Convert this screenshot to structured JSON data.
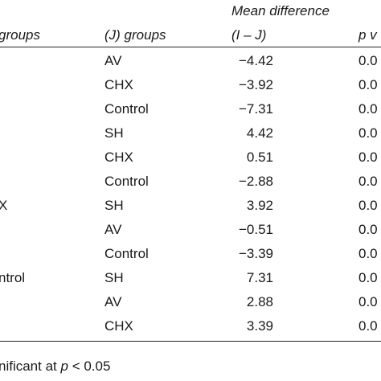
{
  "header": {
    "i_groups": "groups",
    "j_groups": "(J) groups",
    "mean_diff_line1": "Mean difference",
    "mean_diff_line2": "(I – J)",
    "p_value": "p v"
  },
  "rows": [
    {
      "i_group": "",
      "j_group": "AV",
      "mean_diff": "−4.42",
      "p": "0.0"
    },
    {
      "i_group": "",
      "j_group": "CHX",
      "mean_diff": "−3.92",
      "p": "0.0"
    },
    {
      "i_group": "",
      "j_group": "Control",
      "mean_diff": "−7.31",
      "p": "0.0"
    },
    {
      "i_group": "",
      "j_group": "SH",
      "mean_diff": "4.42",
      "p": "0.0"
    },
    {
      "i_group": "",
      "j_group": "CHX",
      "mean_diff": "0.51",
      "p": "0.0"
    },
    {
      "i_group": "",
      "j_group": "Control",
      "mean_diff": "−2.88",
      "p": "0.0"
    },
    {
      "i_group": "X",
      "j_group": "SH",
      "mean_diff": "3.92",
      "p": "0.0"
    },
    {
      "i_group": "",
      "j_group": "AV",
      "mean_diff": "−0.51",
      "p": "0.0"
    },
    {
      "i_group": "",
      "j_group": "Control",
      "mean_diff": "−3.39",
      "p": "0.0"
    },
    {
      "i_group": "ntrol",
      "j_group": "SH",
      "mean_diff": "7.31",
      "p": "0.0"
    },
    {
      "i_group": "",
      "j_group": "AV",
      "mean_diff": "2.88",
      "p": "0.0"
    },
    {
      "i_group": "",
      "j_group": "CHX",
      "mean_diff": "3.39",
      "p": "0.0"
    }
  ],
  "footnote": {
    "prefix": "nificant at ",
    "p": "p",
    "suffix": " < 0.05"
  }
}
